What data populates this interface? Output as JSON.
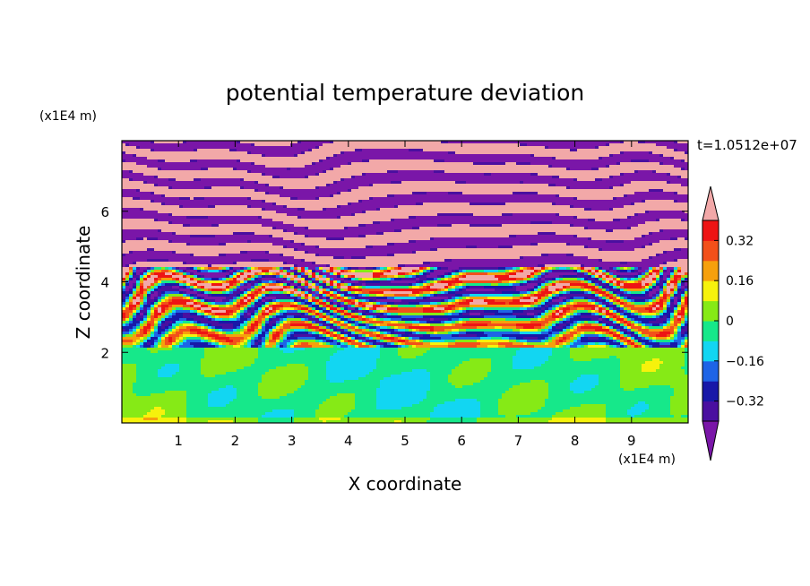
{
  "chart_data": {
    "type": "heatmap",
    "title": "potential temperature deviation",
    "xlabel": "X coordinate",
    "ylabel": "Z coordinate",
    "x_unit_label": "(x1E4 m)",
    "y_unit_label": "(x1E4 m)",
    "time_label": "t=1.0512e+07",
    "xlim": [
      0,
      10
    ],
    "ylim": [
      0,
      8
    ],
    "x_ticks": [
      1,
      2,
      3,
      4,
      5,
      6,
      7,
      8,
      9
    ],
    "y_ticks": [
      2,
      4,
      6
    ],
    "x_tick_labels": [
      "1",
      "2",
      "3",
      "4",
      "5",
      "6",
      "7",
      "8",
      "9"
    ],
    "y_tick_labels": [
      "2",
      "4",
      "6"
    ],
    "colorbar": {
      "levels": [
        -0.4,
        -0.32,
        -0.24,
        -0.16,
        -0.08,
        0,
        0.08,
        0.16,
        0.24,
        0.32,
        0.4
      ],
      "tick_values": [
        0.32,
        0.16,
        0,
        -0.16,
        -0.32
      ],
      "tick_labels": [
        "0.32",
        "0.16",
        "0",
        "−0.16",
        "−0.32"
      ],
      "colors": [
        "#7a16a8",
        "#4a0fa0",
        "#1818a8",
        "#1e64e6",
        "#12d6f2",
        "#16e88a",
        "#86ea16",
        "#f6f20c",
        "#f6a00c",
        "#f2501a",
        "#ee1414",
        "#f2a8a8"
      ],
      "extend": "both"
    }
  }
}
